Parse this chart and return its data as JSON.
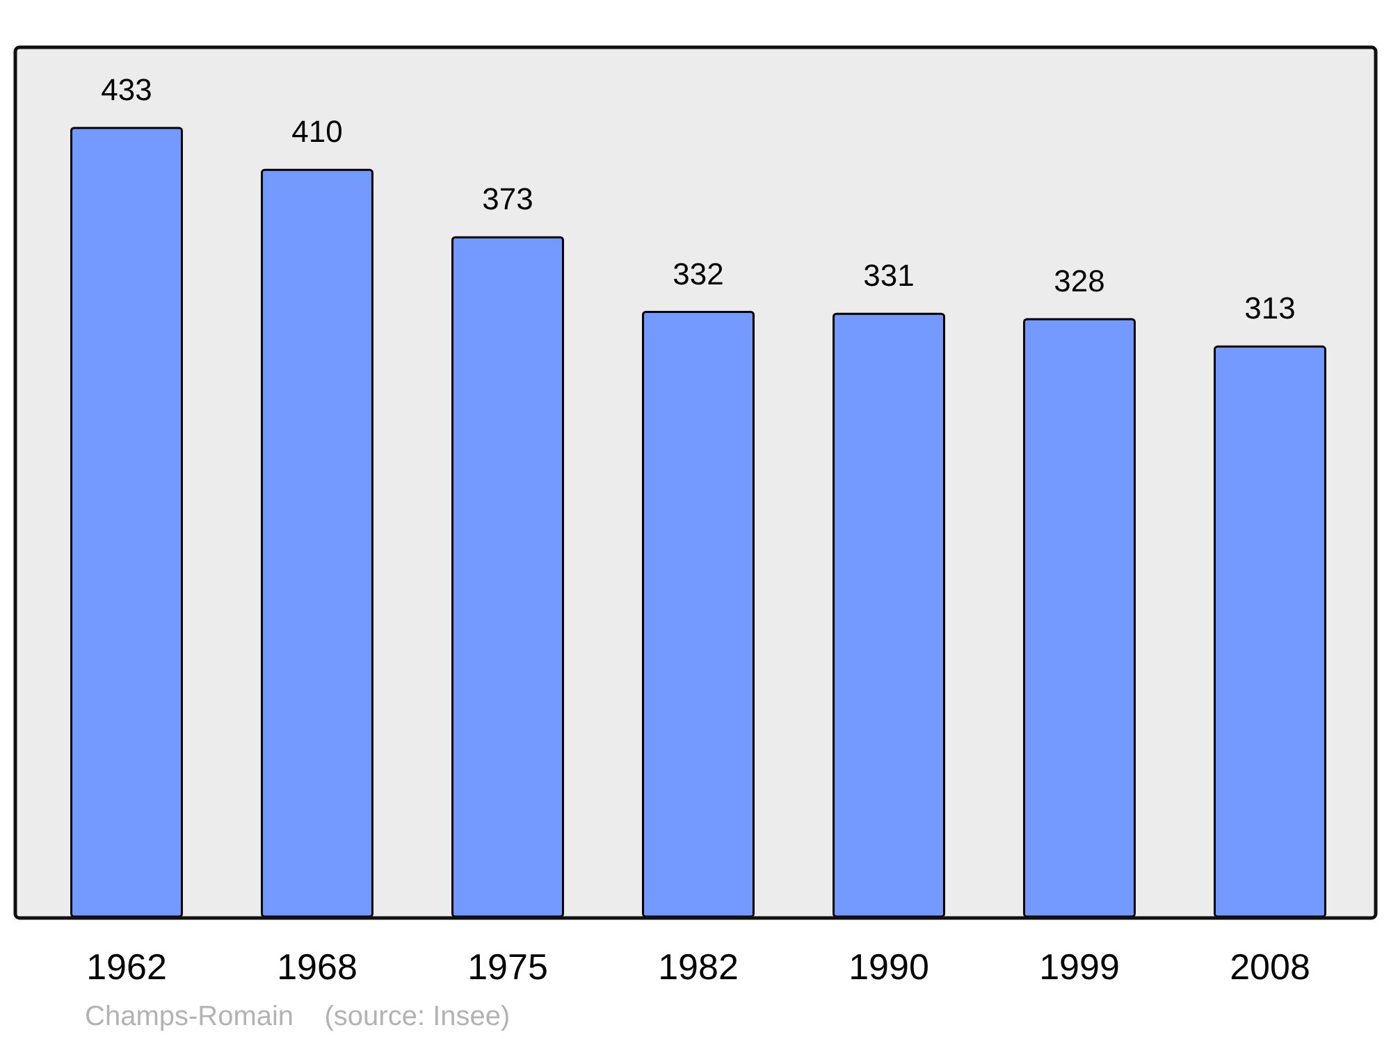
{
  "chart_data": {
    "type": "bar",
    "categories": [
      "1962",
      "1968",
      "1975",
      "1982",
      "1990",
      "1999",
      "2008"
    ],
    "values": [
      433,
      410,
      373,
      332,
      331,
      328,
      313
    ],
    "color": "#7499ff",
    "data_labels": true,
    "annotations": [
      "Champs-Romain    (source: Insee)"
    ]
  }
}
